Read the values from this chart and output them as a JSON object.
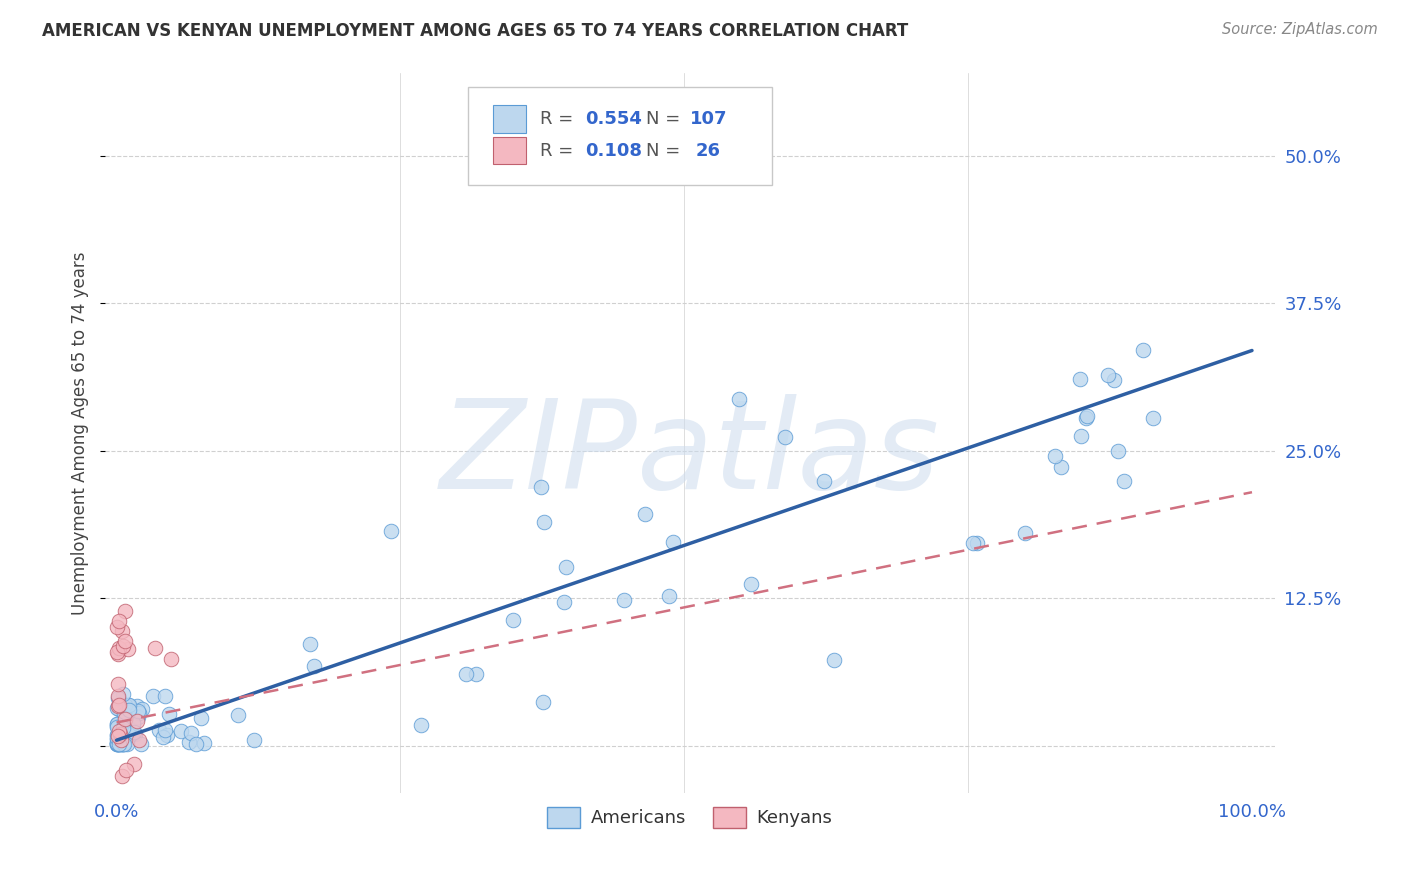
{
  "title": "AMERICAN VS KENYAN UNEMPLOYMENT AMONG AGES 65 TO 74 YEARS CORRELATION CHART",
  "source": "Source: ZipAtlas.com",
  "ylabel": "Unemployment Among Ages 65 to 74 years",
  "xlim": [
    -0.01,
    1.02
  ],
  "ylim": [
    -0.04,
    0.57
  ],
  "yticks": [
    0.0,
    0.125,
    0.25,
    0.375,
    0.5
  ],
  "ytick_labels": [
    "",
    "12.5%",
    "25.0%",
    "37.5%",
    "50.0%"
  ],
  "background_color": "#ffffff",
  "grid_color": "#d0d0d0",
  "americans_fill": "#bdd7ee",
  "americans_edge": "#5b9bd5",
  "kenyans_fill": "#f4b8c1",
  "kenyans_edge": "#c0606e",
  "blue_line_color": "#2e5fa3",
  "pink_line_color": "#d07080",
  "R_american": 0.554,
  "N_american": 107,
  "R_kenyan": 0.108,
  "N_kenyan": 26,
  "watermark": "ZIPatlas",
  "legend_americans": "Americans",
  "legend_kenyans": "Kenyans",
  "title_color": "#333333",
  "source_color": "#888888",
  "axis_label_color": "#3366cc",
  "ylabel_color": "#444444",
  "blue_line_start_y": 0.005,
  "blue_line_end_y": 0.335,
  "pink_line_start_y": 0.02,
  "pink_line_end_y": 0.215
}
